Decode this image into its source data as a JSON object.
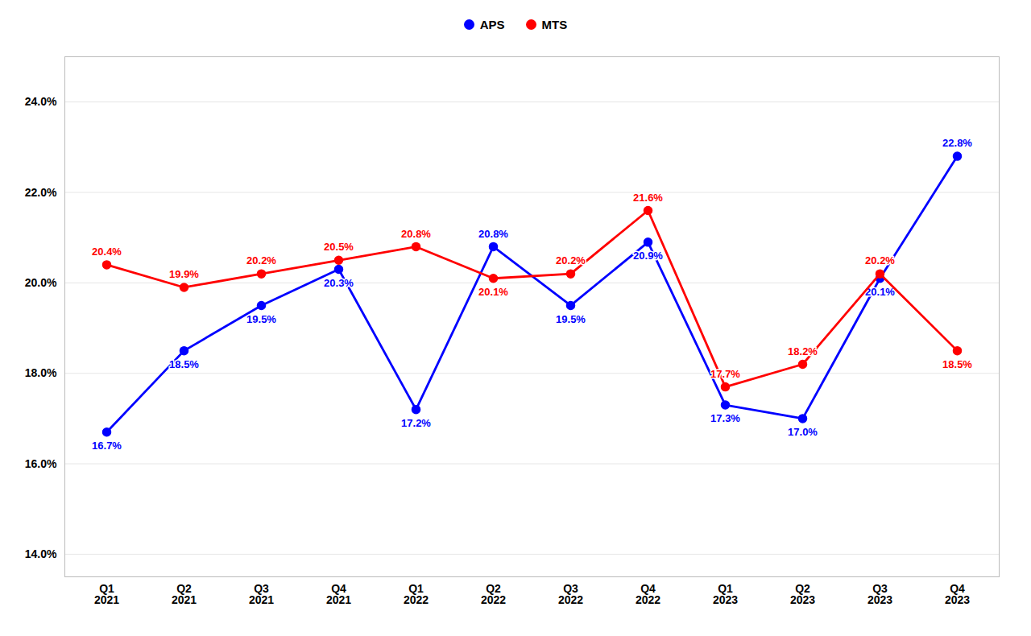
{
  "chart_data": {
    "type": "line",
    "categories": [
      "Q1\n2021",
      "Q2\n2021",
      "Q3\n2021",
      "Q4\n2021",
      "Q1\n2022",
      "Q2\n2022",
      "Q3\n2022",
      "Q4\n2022",
      "Q1\n2023",
      "Q2\n2023",
      "Q3\n2023",
      "Q4\n2023"
    ],
    "series": [
      {
        "name": "APS",
        "color": "#0000FF",
        "marker": "circle",
        "values": [
          16.7,
          18.5,
          19.5,
          20.3,
          17.2,
          20.8,
          19.5,
          20.9,
          17.3,
          17.0,
          20.1,
          22.8
        ],
        "value_labels": [
          "16.7%",
          "18.5%",
          "19.5%",
          "20.3%",
          "17.2%",
          "20.8%",
          "19.5%",
          "20.9%",
          "17.3%",
          "17.0%",
          "20.1%",
          "22.8%"
        ]
      },
      {
        "name": "MTS",
        "color": "#FF0000",
        "marker": "circle",
        "values": [
          20.4,
          19.9,
          20.2,
          20.5,
          20.8,
          20.1,
          20.2,
          21.6,
          17.7,
          18.2,
          20.2,
          18.5
        ],
        "value_labels": [
          "20.4%",
          "19.9%",
          "20.2%",
          "20.5%",
          "20.8%",
          "20.1%",
          "20.2%",
          "21.6%",
          "17.7%",
          "18.2%",
          "20.2%",
          "18.5%"
        ]
      }
    ],
    "ylim": [
      13.5,
      25.0
    ],
    "yticks": [
      {
        "value": 14.0,
        "label": "14.0%"
      },
      {
        "value": 16.0,
        "label": "16.0%"
      },
      {
        "value": 18.0,
        "label": "18.0%"
      },
      {
        "value": 20.0,
        "label": "20.0%"
      },
      {
        "value": 22.0,
        "label": "22.0%"
      },
      {
        "value": 24.0,
        "label": "24.0%"
      }
    ],
    "grid": true,
    "legend": "top",
    "data_labels": true
  }
}
